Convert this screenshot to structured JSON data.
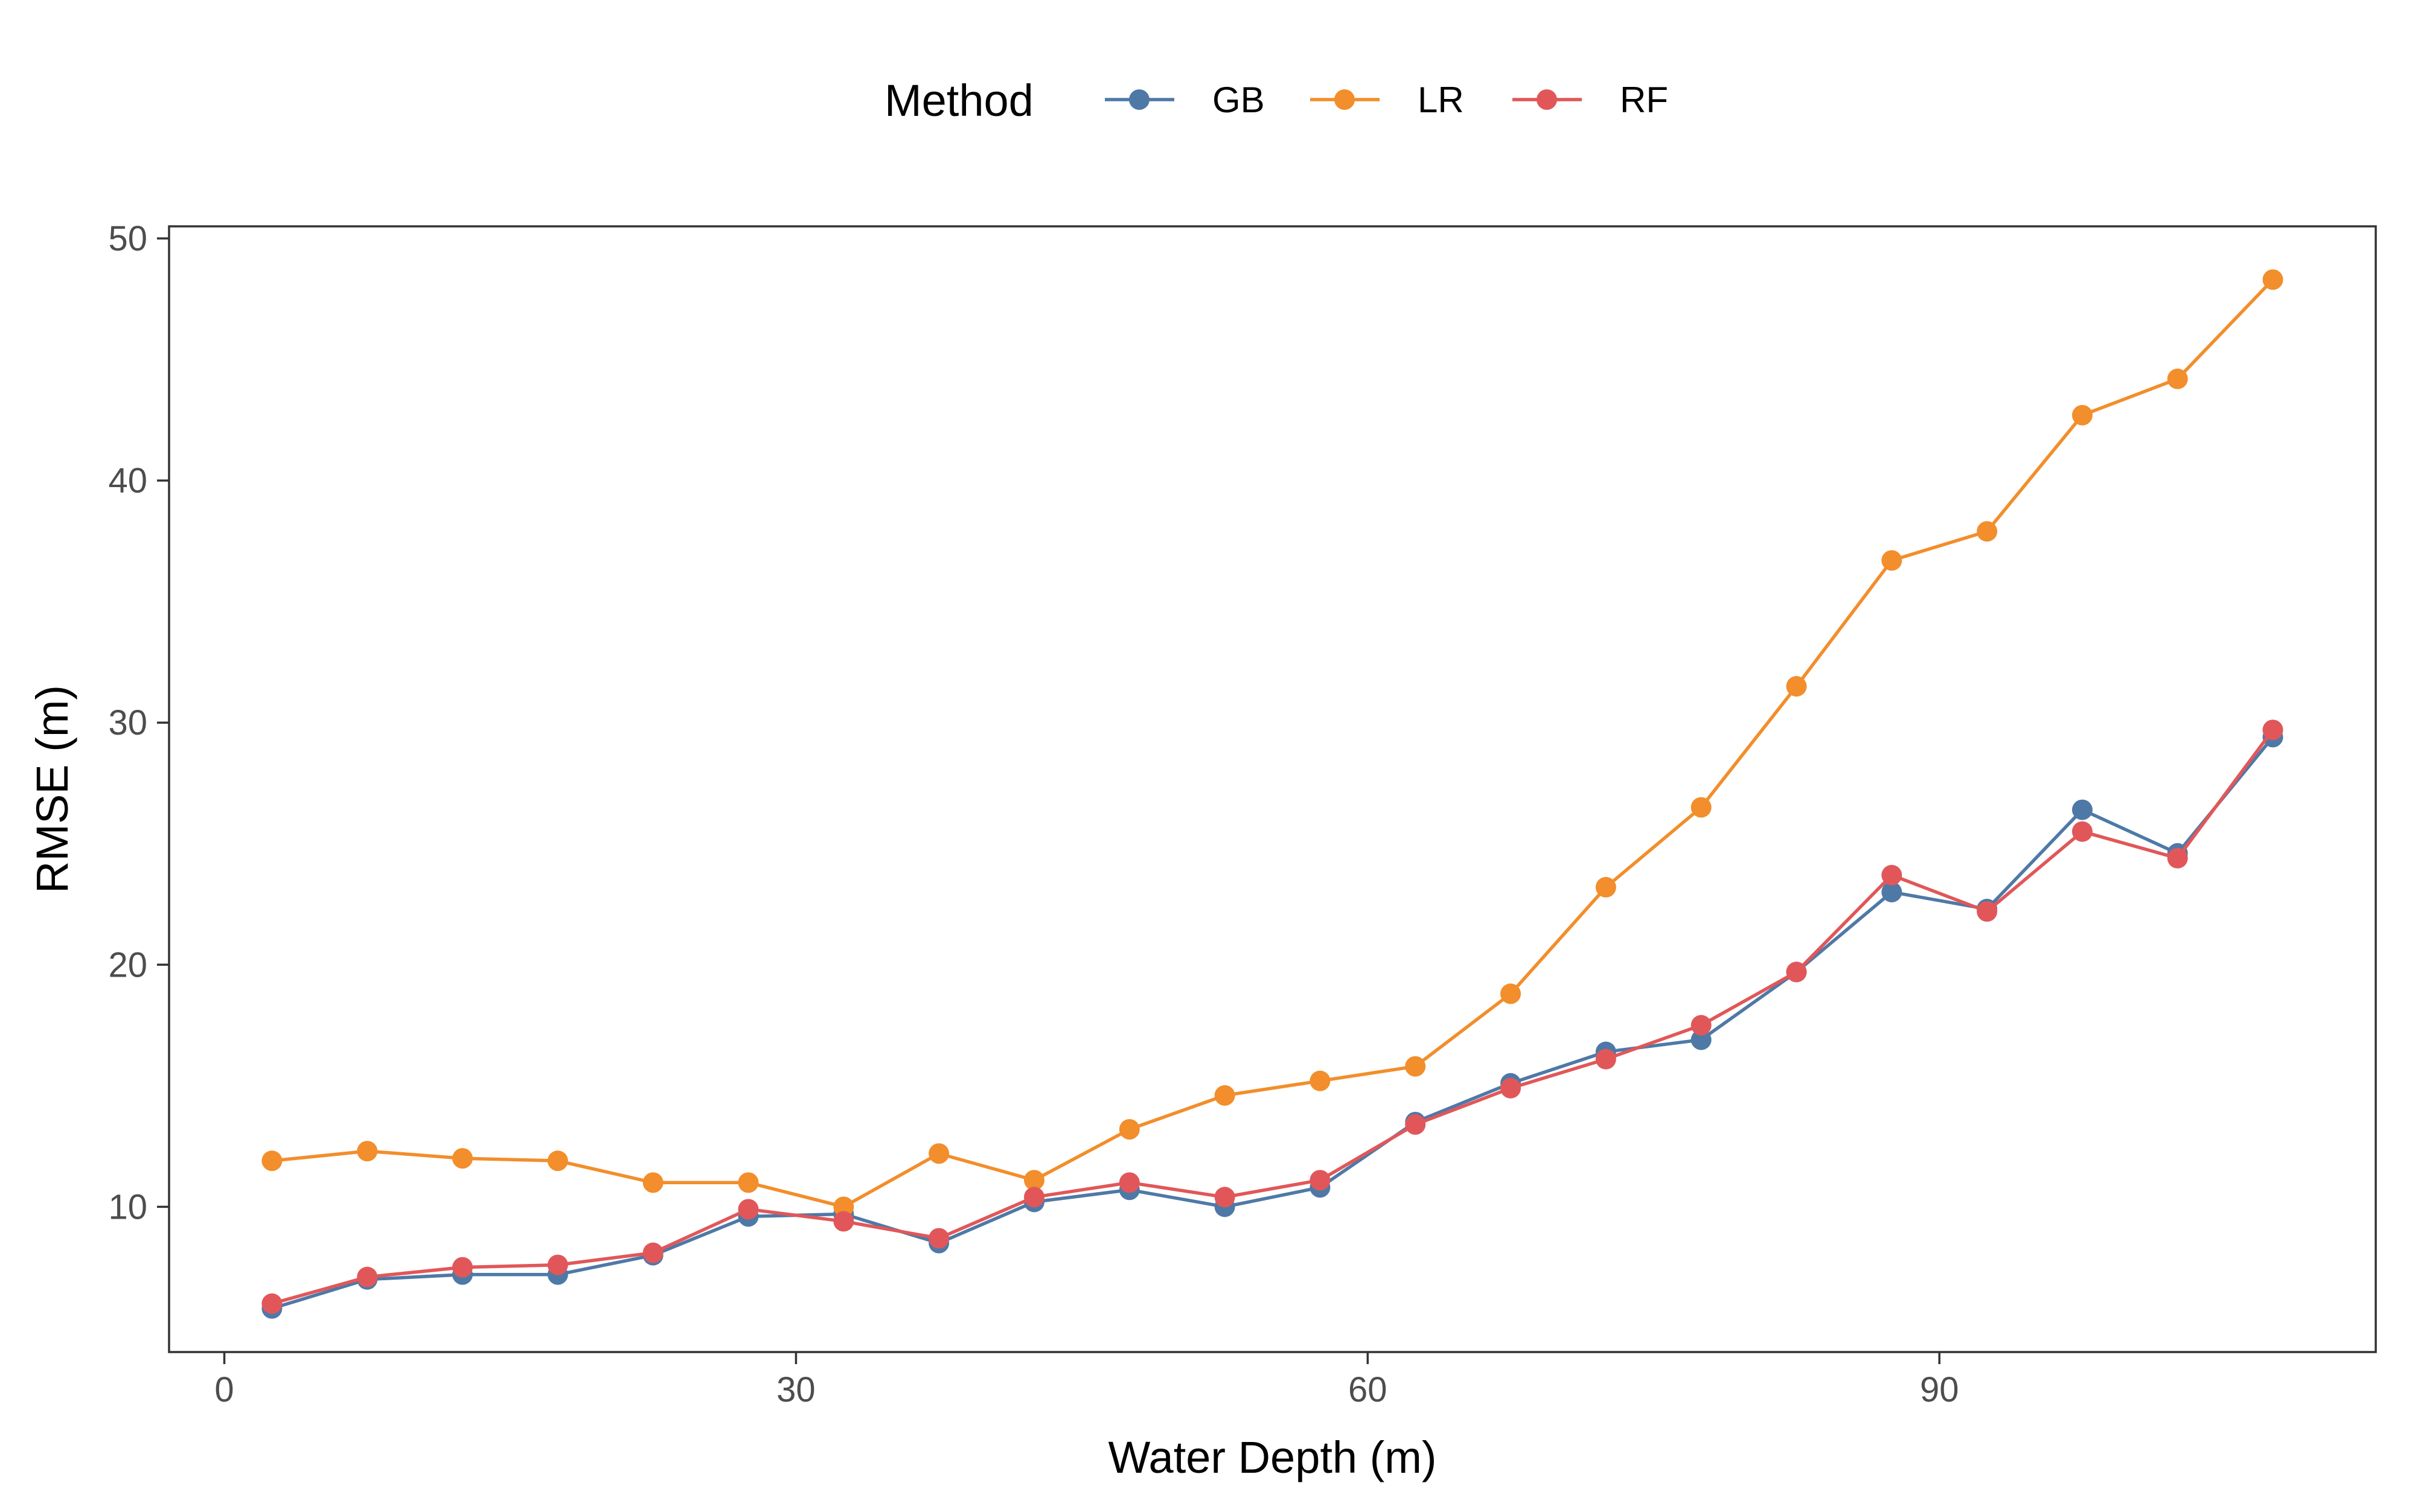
{
  "chart_data": {
    "type": "line",
    "title": "",
    "xlabel": "Water Depth (m)",
    "ylabel": "RMSE (m)",
    "xlim": [
      -2.9,
      112.9
    ],
    "ylim": [
      4,
      50.5
    ],
    "xticks": [
      0,
      30,
      60,
      90
    ],
    "yticks": [
      10,
      20,
      30,
      40,
      50
    ],
    "grid": false,
    "legend": {
      "title": "Method",
      "placement": "top"
    },
    "x": [
      2.5,
      7.5,
      12.5,
      17.5,
      22.5,
      27.5,
      32.5,
      37.5,
      42.5,
      47.5,
      52.5,
      57.5,
      62.5,
      67.5,
      72.5,
      77.5,
      82.5,
      87.5,
      92.5,
      97.5,
      102.5,
      107.5
    ],
    "series": [
      {
        "name": "GB",
        "color": "#4e79a7",
        "values": [
          5.8,
          7.0,
          7.2,
          7.2,
          8.0,
          9.6,
          9.7,
          8.5,
          10.2,
          10.7,
          10.0,
          10.8,
          13.5,
          15.1,
          16.4,
          16.9,
          19.7,
          23.0,
          22.3,
          26.4,
          24.6,
          29.4
        ]
      },
      {
        "name": "LR",
        "color": "#f28e2b",
        "values": [
          11.9,
          12.3,
          12.0,
          11.9,
          11.0,
          11.0,
          10.0,
          12.2,
          11.1,
          13.2,
          14.6,
          15.2,
          15.8,
          18.8,
          23.2,
          26.5,
          31.5,
          36.7,
          37.9,
          42.7,
          44.2,
          48.3
        ]
      },
      {
        "name": "RF",
        "color": "#e15759",
        "values": [
          6.0,
          7.1,
          7.5,
          7.6,
          8.1,
          9.9,
          9.4,
          8.7,
          10.4,
          11.0,
          10.4,
          11.1,
          13.4,
          14.9,
          16.1,
          17.5,
          19.7,
          23.7,
          22.2,
          25.5,
          24.4,
          29.7
        ]
      }
    ]
  }
}
